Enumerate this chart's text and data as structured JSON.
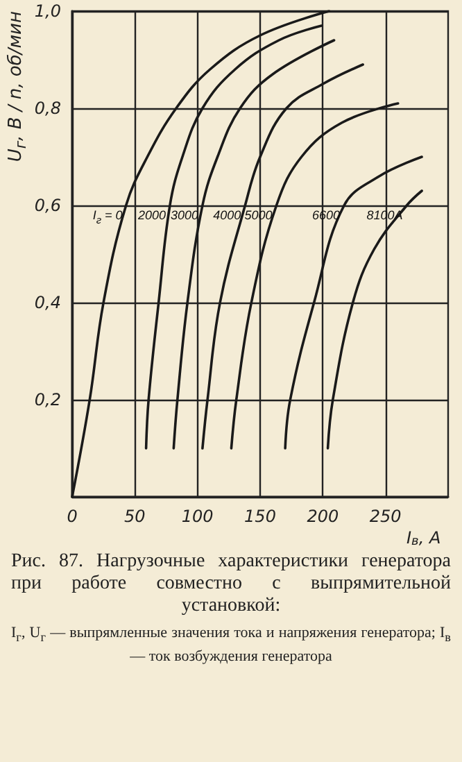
{
  "chart_data": {
    "type": "line",
    "xlabel": "I$_{в}$, A",
    "ylabel": "U$_{г}$, В / n, об/мин",
    "annotations": [
      "Рис. 87. Нагрузочные характеристики генератора при работе совместно с выпрямительной установкой:",
      "I$_{г}$, U$_{г}$ — выпрямленные значения тока и напряжения генератора; I$_{в}$ — ток возбуждения генератора"
    ],
    "series": [
      {
        "name": "I$_{г}$ = 0",
        "color": "#1a1a1a",
        "x": [
          0,
          14,
          25,
          43,
          60,
          83,
          110,
          150,
          205
        ],
        "values": [
          0,
          0.2,
          0.4,
          0.6,
          0.7,
          0.8,
          0.88,
          0.95,
          1.0
        ]
      },
      {
        "name": "2000",
        "color": "#1a1a1a",
        "x": [
          59,
          61,
          69,
          78,
          88,
          104,
          130,
          165,
          199
        ],
        "values": [
          0.1,
          0.2,
          0.4,
          0.6,
          0.7,
          0.8,
          0.88,
          0.94,
          0.97
        ]
      },
      {
        "name": "3000",
        "color": "#1a1a1a",
        "x": [
          81,
          84,
          92,
          104,
          116,
          134,
          160,
          209
        ],
        "values": [
          0.1,
          0.2,
          0.4,
          0.6,
          0.7,
          0.8,
          0.87,
          0.94
        ]
      },
      {
        "name": "4000",
        "color": "#1a1a1a",
        "x": [
          104,
          108,
          118,
          138,
          150,
          171,
          200,
          232
        ],
        "values": [
          0.1,
          0.2,
          0.4,
          0.6,
          0.7,
          0.8,
          0.85,
          0.89
        ]
      },
      {
        "name": "5000",
        "color": "#1a1a1a",
        "x": [
          127,
          131,
          143,
          163,
          183,
          215,
          260
        ],
        "values": [
          0.1,
          0.2,
          0.4,
          0.6,
          0.7,
          0.77,
          0.81
        ]
      },
      {
        "name": "6600",
        "color": "#1a1a1a",
        "x": [
          170,
          174,
          193,
          217,
          245,
          279
        ],
        "values": [
          0.1,
          0.2,
          0.4,
          0.6,
          0.66,
          0.7
        ]
      },
      {
        "name": "8100A",
        "color": "#1a1a1a",
        "x": [
          204,
          208,
          224,
          241,
          267,
          279
        ],
        "values": [
          0.1,
          0.2,
          0.4,
          0.51,
          0.6,
          0.63
        ]
      }
    ],
    "xlim": [
      0,
      300
    ],
    "xticks": [
      0,
      50,
      100,
      150,
      200,
      250
    ],
    "ylim": [
      0,
      1.0
    ],
    "yticks": [
      {
        "value": 0,
        "label": null
      },
      {
        "value": 0.2,
        "label": "0,2"
      },
      {
        "value": 0.4,
        "label": "0,4"
      },
      {
        "value": 0.6,
        "label": "0,6"
      },
      {
        "value": 0.8,
        "label": "0,8"
      },
      {
        "value": 1.0,
        "label": "1,0"
      }
    ],
    "grid": true,
    "legend": false,
    "marker": "none",
    "line_style": "solid"
  }
}
